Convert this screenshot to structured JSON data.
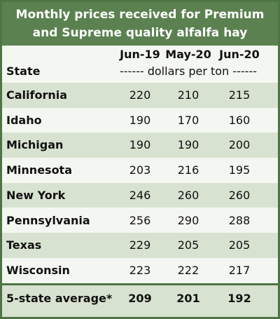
{
  "header": {
    "title": "Monthly prices received for Premium and Supreme quality alfalfa hay"
  },
  "table": {
    "row_header": "State",
    "columns": [
      "Jun-19",
      "May-20",
      "Jun-20"
    ],
    "unit": "------ dollars per ton ------",
    "rows": [
      [
        "California",
        220,
        210,
        215
      ],
      [
        "Idaho",
        190,
        170,
        160
      ],
      [
        "Michigan",
        190,
        190,
        200
      ],
      [
        "Minnesota",
        203,
        216,
        195
      ],
      [
        "New York",
        246,
        260,
        260
      ],
      [
        "Pennsylvania",
        256,
        290,
        288
      ],
      [
        "Texas",
        229,
        205,
        205
      ],
      [
        "Wisconsin",
        223,
        222,
        217
      ]
    ],
    "total": [
      "5-state average*",
      209,
      201,
      192
    ]
  }
}
